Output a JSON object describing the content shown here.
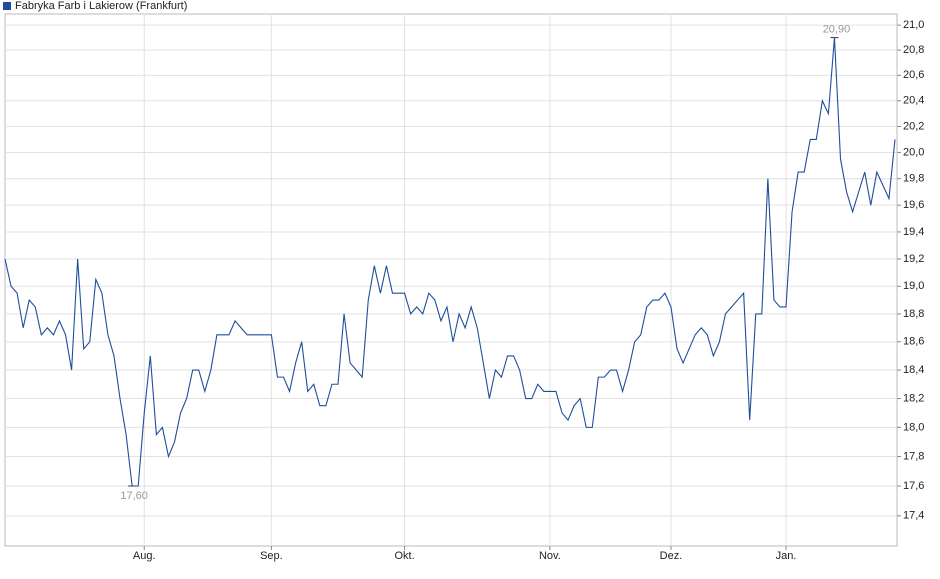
{
  "chart_data": {
    "type": "line",
    "log_scale": true,
    "grid": true,
    "legend": "top-left",
    "categories": [
      null,
      null,
      null,
      null,
      null,
      null,
      null,
      null,
      null,
      null,
      null,
      null,
      null,
      null,
      null,
      null,
      null,
      null,
      null,
      null,
      null,
      null,
      null,
      "Aug.",
      null,
      null,
      null,
      null,
      null,
      null,
      null,
      null,
      null,
      null,
      null,
      null,
      null,
      null,
      null,
      null,
      null,
      null,
      null,
      null,
      "Sep.",
      null,
      null,
      null,
      null,
      null,
      null,
      null,
      null,
      null,
      null,
      null,
      null,
      null,
      null,
      null,
      null,
      null,
      null,
      null,
      null,
      null,
      "Okt.",
      null,
      null,
      null,
      null,
      null,
      null,
      null,
      null,
      null,
      null,
      null,
      null,
      null,
      null,
      null,
      null,
      null,
      null,
      null,
      null,
      null,
      null,
      null,
      "Nov.",
      null,
      null,
      null,
      null,
      null,
      null,
      null,
      null,
      null,
      null,
      null,
      null,
      null,
      null,
      null,
      null,
      null,
      null,
      null,
      "Dez.",
      null,
      null,
      null,
      null,
      null,
      null,
      null,
      null,
      null,
      null,
      null,
      null,
      null,
      null,
      null,
      null,
      null,
      null,
      "Jan.",
      null,
      null,
      null,
      null,
      null,
      null,
      null,
      null,
      null,
      null,
      null,
      null,
      null,
      null,
      null,
      null,
      null,
      null
    ],
    "series": [
      {
        "name": "Fabryka Farb i Lakierow (Frankfurt)",
        "color": "#1f4e9c",
        "values": [
          19.2,
          19.0,
          18.95,
          18.7,
          18.9,
          18.85,
          18.65,
          18.7,
          18.65,
          18.75,
          18.65,
          18.4,
          19.2,
          18.55,
          18.6,
          19.05,
          18.95,
          18.65,
          18.5,
          18.2,
          17.95,
          17.6,
          17.6,
          18.1,
          18.5,
          17.95,
          18.0,
          17.8,
          17.9,
          18.1,
          18.2,
          18.4,
          18.4,
          18.25,
          18.4,
          18.65,
          18.65,
          18.65,
          18.75,
          18.7,
          18.65,
          18.65,
          18.65,
          18.65,
          18.65,
          18.35,
          18.35,
          18.25,
          18.45,
          18.6,
          18.25,
          18.3,
          18.15,
          18.15,
          18.3,
          18.3,
          18.8,
          18.45,
          18.4,
          18.35,
          18.9,
          19.15,
          18.95,
          19.15,
          18.95,
          18.95,
          18.95,
          18.8,
          18.85,
          18.8,
          18.95,
          18.9,
          18.75,
          18.85,
          18.6,
          18.8,
          18.7,
          18.85,
          18.7,
          18.45,
          18.2,
          18.4,
          18.35,
          18.5,
          18.5,
          18.4,
          18.2,
          18.2,
          18.3,
          18.25,
          18.25,
          18.25,
          18.1,
          18.05,
          18.15,
          18.2,
          18.0,
          18.0,
          18.35,
          18.35,
          18.4,
          18.4,
          18.25,
          18.4,
          18.6,
          18.65,
          18.85,
          18.9,
          18.9,
          18.95,
          18.85,
          18.55,
          18.45,
          18.55,
          18.65,
          18.7,
          18.65,
          18.5,
          18.6,
          18.8,
          18.85,
          18.9,
          18.95,
          18.05,
          18.8,
          18.8,
          19.8,
          18.9,
          18.85,
          18.85,
          19.55,
          19.85,
          19.85,
          20.1,
          20.1,
          20.4,
          20.3,
          20.9,
          19.95,
          19.7,
          19.55,
          19.7,
          19.85,
          19.6,
          19.85,
          19.75,
          19.65,
          20.1
        ]
      }
    ],
    "annotations": [
      {
        "value": 17.6,
        "label": "17,60"
      },
      {
        "value": 20.9,
        "label": "20,90"
      }
    ],
    "ylim": [
      17.2,
      21.09
    ],
    "yticks": [
      {
        "value": 17.4,
        "label": "17,4"
      },
      {
        "value": 17.6,
        "label": "17,6"
      },
      {
        "value": 17.8,
        "label": "17,8"
      },
      {
        "value": 18.0,
        "label": "18,0"
      },
      {
        "value": 18.2,
        "label": "18,2"
      },
      {
        "value": 18.4,
        "label": "18,4"
      },
      {
        "value": 18.6,
        "label": "18,6"
      },
      {
        "value": 18.8,
        "label": "18,8"
      },
      {
        "value": 19.0,
        "label": "19,0"
      },
      {
        "value": 19.2,
        "label": "19,2"
      },
      {
        "value": 19.4,
        "label": "19,4"
      },
      {
        "value": 19.6,
        "label": "19,6"
      },
      {
        "value": 19.8,
        "label": "19,8"
      },
      {
        "value": 20.0,
        "label": "20,0"
      },
      {
        "value": 20.2,
        "label": "20,2"
      },
      {
        "value": 20.4,
        "label": "20,4"
      },
      {
        "value": 20.6,
        "label": "20,6"
      },
      {
        "value": 20.8,
        "label": "20,8"
      },
      {
        "value": 21.0,
        "label": "21,0"
      }
    ]
  }
}
